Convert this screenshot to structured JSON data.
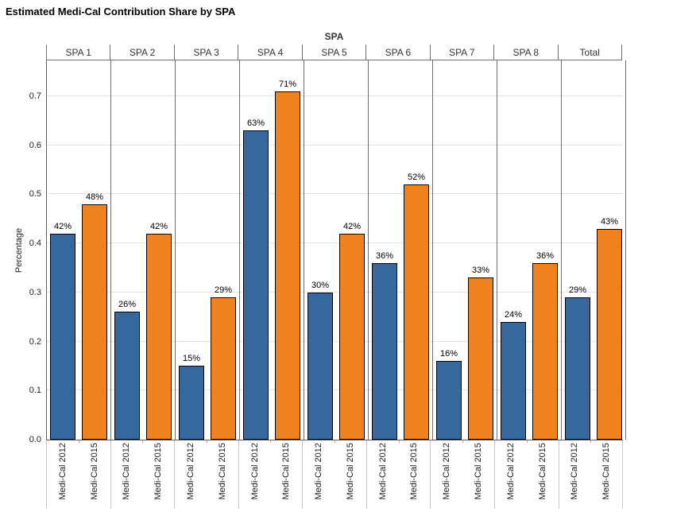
{
  "title": "Estimated Medi-Cal Contribution Share by SPA",
  "chart_data": {
    "type": "bar",
    "title": "Estimated Medi-Cal Contribution Share by SPA",
    "panel_label": "SPA",
    "categories": [
      "SPA 1",
      "SPA 2",
      "SPA 3",
      "SPA 4",
      "SPA 5",
      "SPA 6",
      "SPA 7",
      "SPA 8",
      "Total"
    ],
    "series": [
      {
        "name": "Medi-Cal 2012",
        "color": "#36689D",
        "values": [
          0.42,
          0.26,
          0.15,
          0.63,
          0.3,
          0.36,
          0.16,
          0.24,
          0.29
        ],
        "labels": [
          "42%",
          "26%",
          "15%",
          "63%",
          "30%",
          "36%",
          "16%",
          "24%",
          "29%"
        ]
      },
      {
        "name": "Medi-Cal 2015",
        "color": "#F0821E",
        "values": [
          0.48,
          0.42,
          0.29,
          0.71,
          0.42,
          0.52,
          0.33,
          0.36,
          0.43
        ],
        "labels": [
          "48%",
          "42%",
          "29%",
          "71%",
          "42%",
          "52%",
          "33%",
          "36%",
          "43%"
        ]
      }
    ],
    "ylabel": "Percentage",
    "yticks": [
      0.0,
      0.1,
      0.2,
      0.3,
      0.4,
      0.5,
      0.6,
      0.7
    ],
    "ylim": [
      0,
      0.7727
    ],
    "grid": "horizontal",
    "legend": "none",
    "bar_border_color": "#000000",
    "gridline_color": "#e3e3e3",
    "divider_color": "#6f6f6f"
  }
}
